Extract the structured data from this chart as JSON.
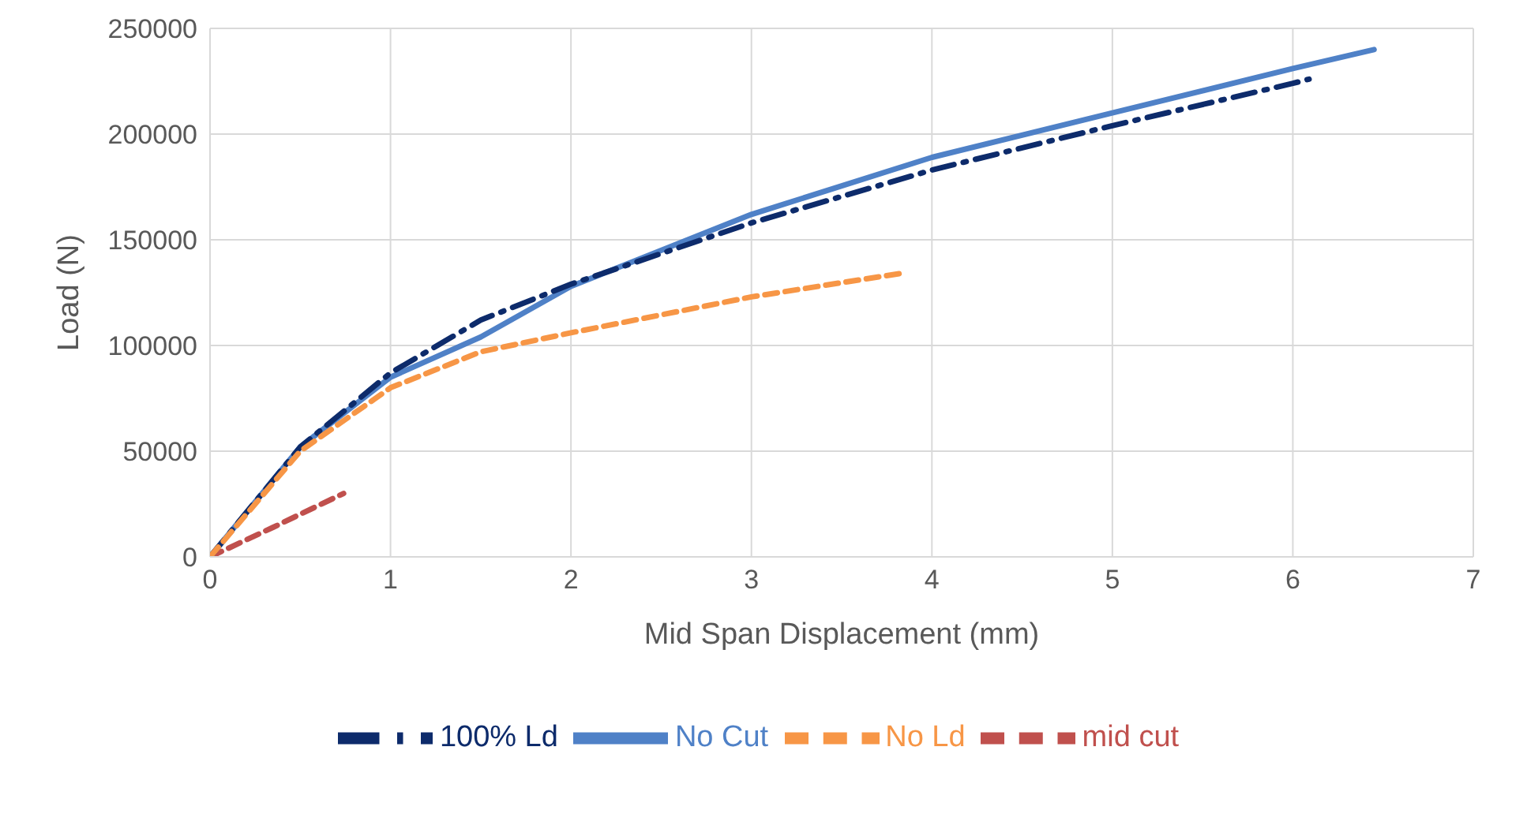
{
  "chart_data": {
    "type": "line",
    "xlabel": "Mid Span Displacement (mm)",
    "ylabel": "Load (N)",
    "xlim": [
      0,
      7
    ],
    "xticks": [
      0,
      1,
      2,
      3,
      4,
      5,
      6,
      7
    ],
    "ylim": [
      0,
      250000
    ],
    "yticks": [
      0,
      50000,
      100000,
      150000,
      200000,
      250000
    ],
    "grid": true,
    "legend": "bottom",
    "marker": "none",
    "series": [
      {
        "name": "No Cut",
        "color": "#4f81c7",
        "line_style": "solid",
        "x": [
          0,
          0.5,
          1,
          1.5,
          2,
          3,
          4,
          5,
          6,
          6.45
        ],
        "values": [
          0,
          52000,
          85000,
          104000,
          128000,
          162000,
          189000,
          210000,
          231000,
          240000
        ]
      },
      {
        "name": "mid cut",
        "color": "#c0504d",
        "line_style": "dashed",
        "x": [
          0,
          0.35,
          0.74
        ],
        "values": [
          0,
          14000,
          30000
        ]
      },
      {
        "name": "100% Ld",
        "color": "#0d2b6b",
        "line_style": "dashdot",
        "x": [
          0,
          0.5,
          1,
          1.5,
          2,
          3,
          4,
          5,
          6,
          6.09
        ],
        "values": [
          0,
          52000,
          87000,
          112000,
          129000,
          158000,
          183000,
          204000,
          224000,
          226000
        ]
      },
      {
        "name": "No Ld",
        "color": "#f79646",
        "line_style": "dashed",
        "x": [
          0,
          0.5,
          1,
          1.5,
          2,
          3,
          3.82
        ],
        "values": [
          0,
          50000,
          80000,
          97000,
          106000,
          123000,
          134000
        ]
      }
    ]
  }
}
